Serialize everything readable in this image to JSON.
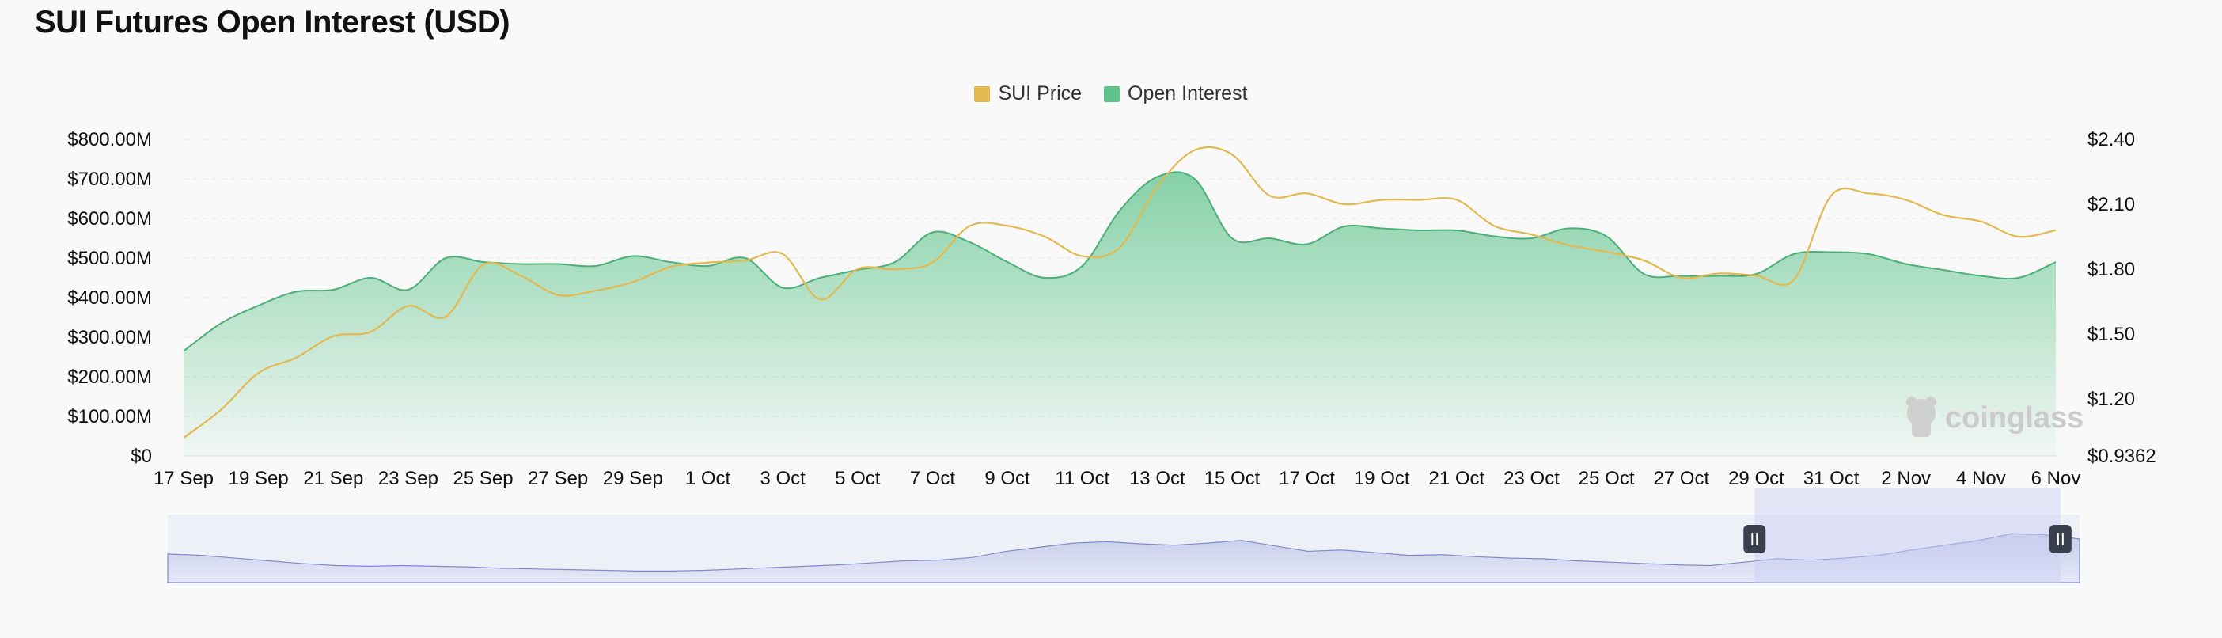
{
  "title": "SUI Futures Open Interest (USD)",
  "watermark": "coinglass",
  "legend": [
    {
      "label": "SUI Price",
      "color": "#e3b94f"
    },
    {
      "label": "Open Interest",
      "color": "#5fc48c"
    }
  ],
  "chart_data": {
    "type": "area",
    "title": "SUI Futures Open Interest (USD)",
    "x": [
      "17 Sep",
      "18 Sep",
      "19 Sep",
      "20 Sep",
      "21 Sep",
      "22 Sep",
      "23 Sep",
      "24 Sep",
      "25 Sep",
      "26 Sep",
      "27 Sep",
      "28 Sep",
      "29 Sep",
      "30 Sep",
      "1 Oct",
      "2 Oct",
      "3 Oct",
      "4 Oct",
      "5 Oct",
      "6 Oct",
      "7 Oct",
      "8 Oct",
      "9 Oct",
      "10 Oct",
      "11 Oct",
      "12 Oct",
      "13 Oct",
      "14 Oct",
      "15 Oct",
      "16 Oct",
      "17 Oct",
      "18 Oct",
      "19 Oct",
      "20 Oct",
      "21 Oct",
      "22 Oct",
      "23 Oct",
      "24 Oct",
      "25 Oct",
      "26 Oct",
      "27 Oct",
      "28 Oct",
      "29 Oct",
      "30 Oct",
      "31 Oct",
      "1 Nov",
      "2 Nov",
      "3 Nov",
      "4 Nov",
      "5 Nov",
      "6 Nov"
    ],
    "x_tick_labels": [
      "17 Sep",
      "19 Sep",
      "21 Sep",
      "23 Sep",
      "25 Sep",
      "27 Sep",
      "29 Sep",
      "1 Oct",
      "3 Oct",
      "5 Oct",
      "7 Oct",
      "9 Oct",
      "11 Oct",
      "13 Oct",
      "15 Oct",
      "17 Oct",
      "19 Oct",
      "21 Oct",
      "23 Oct",
      "25 Oct",
      "27 Oct",
      "29 Oct",
      "31 Oct",
      "2 Nov",
      "4 Nov",
      "6 Nov"
    ],
    "series": [
      {
        "name": "Open Interest",
        "axis": "left",
        "unit": "USD",
        "values": [
          265000000,
          335000000,
          380000000,
          415000000,
          420000000,
          450000000,
          420000000,
          500000000,
          490000000,
          485000000,
          485000000,
          480000000,
          505000000,
          490000000,
          480000000,
          500000000,
          425000000,
          450000000,
          470000000,
          490000000,
          565000000,
          540000000,
          490000000,
          450000000,
          480000000,
          620000000,
          705000000,
          700000000,
          550000000,
          550000000,
          535000000,
          580000000,
          575000000,
          570000000,
          570000000,
          555000000,
          550000000,
          575000000,
          555000000,
          460000000,
          455000000,
          455000000,
          460000000,
          510000000,
          515000000,
          510000000,
          485000000,
          470000000,
          455000000,
          450000000,
          490000000
        ]
      },
      {
        "name": "SUI Price",
        "axis": "right",
        "unit": "USD",
        "values": [
          1.02,
          1.15,
          1.32,
          1.39,
          1.49,
          1.51,
          1.63,
          1.58,
          1.82,
          1.77,
          1.68,
          1.7,
          1.74,
          1.81,
          1.83,
          1.84,
          1.87,
          1.66,
          1.8,
          1.8,
          1.83,
          2.0,
          2.0,
          1.95,
          1.86,
          1.9,
          2.18,
          2.35,
          2.33,
          2.14,
          2.15,
          2.1,
          2.12,
          2.12,
          2.12,
          2.0,
          1.96,
          1.91,
          1.88,
          1.84,
          1.76,
          1.78,
          1.77,
          1.75,
          2.14,
          2.15,
          2.12,
          2.05,
          2.02,
          1.95,
          1.98
        ]
      }
    ],
    "y_left": {
      "ticks": [
        "$0",
        "$100.00M",
        "$200.00M",
        "$300.00M",
        "$400.00M",
        "$500.00M",
        "$600.00M",
        "$700.00M",
        "$800.00M"
      ],
      "range": [
        0,
        800000000
      ]
    },
    "y_right": {
      "ticks": [
        "$0.9362",
        "$1.20",
        "$1.50",
        "$1.80",
        "$2.10",
        "$2.40"
      ],
      "values": [
        0.9362,
        1.2,
        1.5,
        1.8,
        2.1,
        2.4
      ],
      "range": [
        0.9362,
        2.4
      ]
    },
    "navigator": {
      "values": [
        0.42,
        0.4,
        0.36,
        0.32,
        0.28,
        0.25,
        0.24,
        0.25,
        0.24,
        0.23,
        0.21,
        0.2,
        0.19,
        0.18,
        0.17,
        0.17,
        0.18,
        0.2,
        0.22,
        0.24,
        0.26,
        0.29,
        0.32,
        0.33,
        0.37,
        0.46,
        0.52,
        0.58,
        0.6,
        0.57,
        0.55,
        0.58,
        0.62,
        0.54,
        0.46,
        0.48,
        0.44,
        0.4,
        0.41,
        0.38,
        0.36,
        0.35,
        0.32,
        0.3,
        0.28,
        0.26,
        0.25,
        0.3,
        0.35,
        0.33,
        0.36,
        0.4,
        0.48,
        0.55,
        0.62,
        0.72,
        0.7,
        0.64
      ],
      "selected_range": [
        0.83,
        0.99
      ]
    }
  }
}
